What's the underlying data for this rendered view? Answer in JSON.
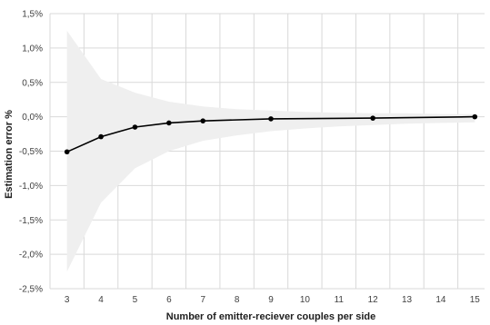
{
  "chart_data": {
    "type": "line",
    "title": "",
    "xlabel": "Number of emitter-reciever couples per side",
    "ylabel": "Estimation error %",
    "x_categories": [
      "3",
      "4",
      "5",
      "6",
      "7",
      "8",
      "9",
      "10",
      "11",
      "12",
      "13",
      "14",
      "15"
    ],
    "ylim": [
      -2.5,
      1.5
    ],
    "yticks": [
      1.5,
      1.0,
      0.5,
      0.0,
      -0.5,
      -1.0,
      -1.5,
      -2.0,
      -2.5
    ],
    "ytick_labels": [
      "1,5%",
      "1,0%",
      "0,5%",
      "0,0%",
      "-0,5%",
      "-1,0%",
      "-1,5%",
      "-2,0%",
      "-2,5%"
    ],
    "grid": true,
    "legend": "none",
    "series": [
      {
        "x": [
          3,
          4,
          5,
          6,
          7,
          9,
          12,
          15
        ],
        "values": [
          -0.51,
          -0.29,
          -0.15,
          -0.09,
          -0.06,
          -0.03,
          -0.02,
          0.0
        ],
        "color": "#000000",
        "markers": true
      }
    ],
    "band": {
      "x": [
        3,
        4,
        5,
        6,
        7,
        8,
        9,
        10,
        11,
        12,
        13,
        14,
        15
      ],
      "upper": [
        1.25,
        0.55,
        0.35,
        0.22,
        0.15,
        0.11,
        0.09,
        0.07,
        0.06,
        0.05,
        0.05,
        0.04,
        0.04
      ],
      "lower": [
        -2.25,
        -1.25,
        -0.75,
        -0.5,
        -0.35,
        -0.27,
        -0.21,
        -0.17,
        -0.14,
        -0.12,
        -0.1,
        -0.09,
        -0.08
      ],
      "color": "#efefef"
    }
  }
}
